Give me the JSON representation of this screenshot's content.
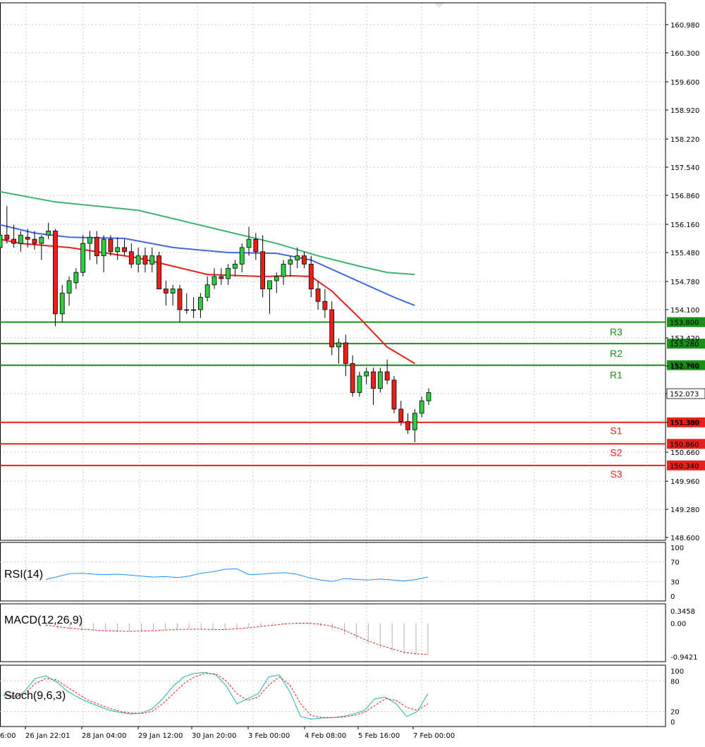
{
  "chart_data": {
    "type": "candlestick",
    "price_axis": {
      "ticks": [
        "160.980",
        "160.300",
        "159.600",
        "158.920",
        "158.220",
        "157.540",
        "156.860",
        "156.160",
        "155.480",
        "154.780",
        "154.100",
        "153.420",
        "152.740",
        "152.073",
        "151.380",
        "150.660",
        "149.960",
        "149.280",
        "148.600"
      ],
      "range": [
        148.6,
        161.3
      ]
    },
    "current_price": "152.073",
    "time_labels": [
      "26 Jan 22:01",
      "28 Jan 04:00",
      "29 Jan 12:00",
      "30 Jan 20:00",
      "3 Feb 00:00",
      "4 Feb 08:00",
      "5 Feb 16:00",
      "7 Feb 00:00"
    ],
    "time_label_cut": "6:00",
    "levels": [
      {
        "name": "R3",
        "price": 153.8,
        "label": "153.800",
        "color": "#1a8f1a"
      },
      {
        "name": "R2",
        "price": 153.28,
        "label": "153.280",
        "color": "#1a8f1a"
      },
      {
        "name": "R1",
        "price": 152.76,
        "label": "152.760",
        "color": "#1a8f1a"
      },
      {
        "name": "S1",
        "price": 151.38,
        "label": "151.380",
        "color": "#e8201c"
      },
      {
        "name": "S2",
        "price": 150.86,
        "label": "150.860",
        "color": "#e8201c"
      },
      {
        "name": "S3",
        "price": 150.34,
        "label": "150.340",
        "color": "#e8201c"
      }
    ],
    "candles": [
      [
        155.6,
        155.95,
        155.4,
        155.9
      ],
      [
        155.9,
        156.6,
        155.7,
        155.8
      ],
      [
        155.8,
        156.15,
        155.6,
        155.7
      ],
      [
        155.7,
        156.0,
        155.5,
        155.9
      ],
      [
        155.85,
        156.05,
        155.6,
        155.8
      ],
      [
        155.8,
        156.0,
        155.55,
        155.7
      ],
      [
        155.7,
        155.9,
        155.3,
        155.85
      ],
      [
        155.9,
        156.2,
        155.8,
        156.0
      ],
      [
        156.0,
        156.05,
        153.7,
        154.0
      ],
      [
        154.0,
        154.7,
        153.8,
        154.5
      ],
      [
        154.5,
        154.9,
        154.2,
        154.8
      ],
      [
        154.75,
        155.1,
        154.6,
        155.0
      ],
      [
        155.0,
        155.9,
        154.9,
        155.7
      ],
      [
        155.7,
        156.0,
        155.3,
        155.85
      ],
      [
        155.85,
        156.0,
        155.2,
        155.4
      ],
      [
        155.4,
        155.9,
        155.0,
        155.8
      ],
      [
        155.8,
        155.9,
        155.4,
        155.5
      ],
      [
        155.5,
        155.85,
        155.3,
        155.6
      ],
      [
        155.6,
        155.8,
        155.4,
        155.5
      ],
      [
        155.5,
        155.7,
        155.1,
        155.2
      ],
      [
        155.2,
        155.6,
        155.0,
        155.4
      ],
      [
        155.4,
        155.6,
        155.0,
        155.2
      ],
      [
        155.2,
        155.6,
        155.0,
        155.4
      ],
      [
        155.4,
        155.5,
        154.6,
        154.6
      ],
      [
        154.6,
        154.8,
        154.2,
        154.5
      ],
      [
        154.5,
        154.7,
        154.2,
        154.6
      ],
      [
        154.6,
        154.7,
        153.8,
        154.1
      ],
      [
        154.1,
        154.5,
        154.0,
        154.1
      ],
      [
        154.1,
        154.4,
        153.9,
        154.1
      ],
      [
        154.1,
        154.5,
        153.9,
        154.4
      ],
      [
        154.4,
        154.9,
        154.3,
        154.7
      ],
      [
        154.7,
        155.1,
        154.6,
        154.9
      ],
      [
        154.9,
        155.1,
        154.7,
        154.85
      ],
      [
        154.85,
        155.2,
        154.7,
        155.1
      ],
      [
        155.1,
        155.3,
        154.9,
        155.2
      ],
      [
        155.2,
        155.7,
        155.0,
        155.6
      ],
      [
        155.6,
        156.1,
        155.4,
        155.8
      ],
      [
        155.8,
        155.95,
        155.3,
        155.5
      ],
      [
        155.5,
        155.9,
        154.4,
        154.6
      ],
      [
        154.6,
        154.8,
        154.0,
        154.8
      ],
      [
        154.8,
        155.0,
        154.5,
        154.9
      ],
      [
        154.9,
        155.3,
        154.7,
        155.2
      ],
      [
        155.2,
        155.4,
        154.9,
        155.3
      ],
      [
        155.3,
        155.6,
        155.1,
        155.4
      ],
      [
        155.4,
        155.5,
        155.1,
        155.2
      ],
      [
        155.2,
        155.4,
        154.4,
        154.6
      ],
      [
        154.6,
        154.8,
        154.1,
        154.3
      ],
      [
        154.3,
        154.6,
        153.9,
        154.1
      ],
      [
        154.1,
        154.3,
        153.0,
        153.2
      ],
      [
        153.2,
        153.4,
        152.8,
        153.3
      ],
      [
        153.3,
        153.5,
        152.5,
        152.8
      ],
      [
        152.8,
        153.0,
        152.0,
        152.1
      ],
      [
        152.1,
        152.6,
        152.0,
        152.5
      ],
      [
        152.5,
        152.7,
        152.3,
        152.6
      ],
      [
        152.6,
        152.7,
        151.8,
        152.2
      ],
      [
        152.2,
        152.7,
        152.1,
        152.6
      ],
      [
        152.6,
        152.9,
        152.3,
        152.4
      ],
      [
        152.4,
        152.5,
        151.6,
        151.7
      ],
      [
        151.7,
        151.9,
        151.3,
        151.4
      ],
      [
        151.4,
        151.6,
        151.1,
        151.2
      ],
      [
        151.2,
        151.7,
        150.9,
        151.6
      ],
      [
        151.6,
        152.0,
        151.5,
        151.9
      ],
      [
        151.9,
        152.2,
        151.8,
        152.1
      ]
    ],
    "ma_fast": [
      [
        0,
        155.8
      ],
      [
        3,
        155.7
      ],
      [
        10,
        155.6
      ],
      [
        20,
        155.35
      ],
      [
        30,
        154.95
      ],
      [
        38,
        154.9
      ],
      [
        42,
        154.92
      ],
      [
        45,
        154.9
      ],
      [
        48,
        154.55
      ],
      [
        52,
        153.9
      ],
      [
        56,
        153.2
      ],
      [
        60,
        152.8
      ]
    ],
    "ma_mid": [
      [
        0,
        156.15
      ],
      [
        5,
        155.95
      ],
      [
        10,
        155.85
      ],
      [
        18,
        155.82
      ],
      [
        25,
        155.6
      ],
      [
        33,
        155.48
      ],
      [
        40,
        155.46
      ],
      [
        45,
        155.3
      ],
      [
        49,
        155.0
      ],
      [
        53,
        154.7
      ],
      [
        57,
        154.4
      ],
      [
        60,
        154.2
      ]
    ],
    "ma_slow": [
      [
        0,
        156.95
      ],
      [
        8,
        156.7
      ],
      [
        20,
        156.5
      ],
      [
        30,
        156.1
      ],
      [
        40,
        155.7
      ],
      [
        46,
        155.4
      ],
      [
        52,
        155.15
      ],
      [
        56,
        155.0
      ],
      [
        60,
        154.95
      ]
    ],
    "rsi": {
      "label": "RSI(14)",
      "ticks": [
        "100",
        "70",
        "30",
        "0"
      ],
      "range": [
        0,
        100
      ],
      "values": [
        34,
        40,
        46,
        47,
        45,
        44,
        45,
        43,
        41,
        39,
        40,
        38,
        41,
        47,
        50,
        55,
        56,
        44,
        45,
        47,
        48,
        45,
        38,
        33,
        30,
        36,
        34,
        33,
        35,
        33,
        31,
        34,
        39
      ]
    },
    "macd": {
      "label": "MACD(12,26,9)",
      "ticks": [
        "0.3458",
        "0.00",
        "-0.9421"
      ],
      "range": [
        -0.9421,
        0.3458
      ],
      "hist": [
        -0.1,
        -0.16,
        -0.2,
        -0.21,
        -0.22,
        -0.23,
        -0.24,
        -0.23,
        -0.22,
        -0.2,
        -0.17,
        -0.16,
        -0.15,
        -0.17,
        -0.19,
        -0.19,
        -0.16,
        -0.13,
        -0.09,
        -0.05,
        -0.03,
        -0.02,
        -0.04,
        -0.09,
        -0.18,
        -0.32,
        -0.45,
        -0.58,
        -0.7,
        -0.8,
        -0.86,
        -0.9,
        -0.9
      ],
      "signal": [
        -0.05,
        -0.1,
        -0.14,
        -0.17,
        -0.19,
        -0.21,
        -0.22,
        -0.23,
        -0.22,
        -0.21,
        -0.19,
        -0.18,
        -0.17,
        -0.17,
        -0.18,
        -0.18,
        -0.16,
        -0.13,
        -0.09,
        -0.06,
        -0.02,
        0.0,
        0.0,
        -0.03,
        -0.09,
        -0.2,
        -0.35,
        -0.5,
        -0.62,
        -0.72,
        -0.82,
        -0.86,
        -0.88
      ]
    },
    "stoch": {
      "label": "Stoch(9,6,3)",
      "ticks": [
        "100",
        "80",
        "20",
        "0"
      ],
      "range": [
        0,
        100
      ],
      "k": [
        55,
        45,
        60,
        85,
        90,
        78,
        60,
        48,
        38,
        30,
        22,
        18,
        15,
        17,
        25,
        45,
        70,
        88,
        95,
        97,
        92,
        70,
        35,
        45,
        55,
        88,
        92,
        58,
        10,
        5,
        7,
        8,
        10,
        15,
        22,
        45,
        48,
        35,
        10,
        20,
        55
      ],
      "d": [
        52,
        50,
        55,
        75,
        85,
        82,
        68,
        55,
        42,
        34,
        26,
        20,
        17,
        16,
        20,
        35,
        55,
        75,
        88,
        95,
        94,
        80,
        55,
        42,
        48,
        72,
        88,
        72,
        35,
        12,
        8,
        8,
        9,
        12,
        18,
        32,
        45,
        42,
        28,
        22,
        35
      ]
    }
  }
}
